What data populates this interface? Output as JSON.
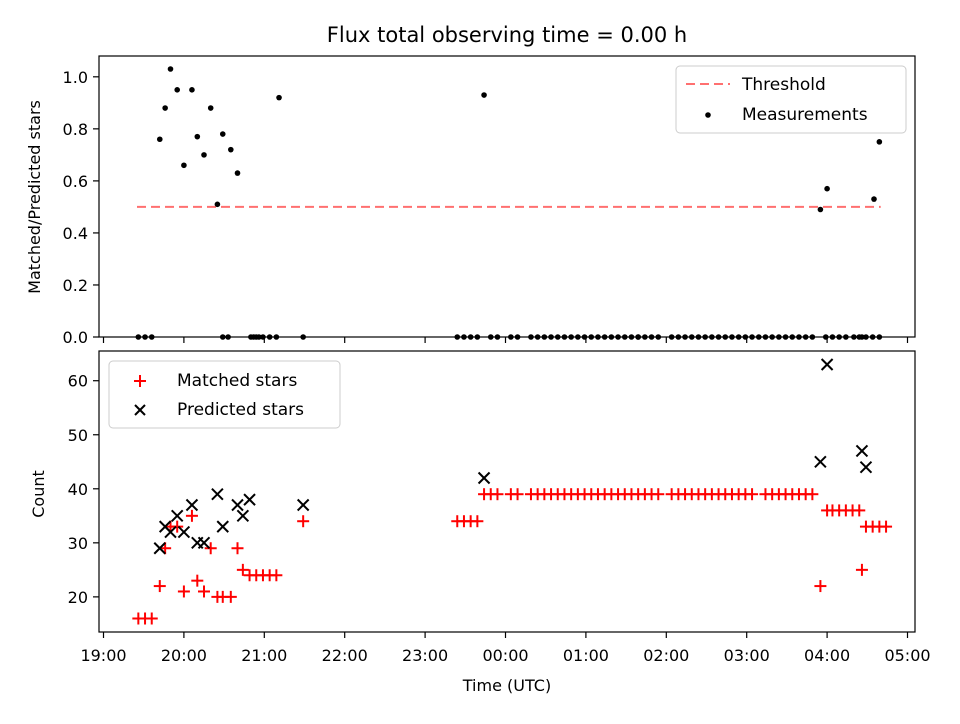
{
  "title": "Flux total observing time = 0.00 h",
  "chart_data": [
    {
      "type": "scatter",
      "panel": "top",
      "ylabel": "Matched/Predicted stars",
      "xlabel": "",
      "xlim": [
        "19:00",
        "05:00"
      ],
      "ylim": [
        0,
        1.08
      ],
      "yticks": [
        "0.0",
        "0.2",
        "0.4",
        "0.6",
        "0.8",
        "1.0"
      ],
      "grid": false,
      "legend_position": "upper right",
      "legend": [
        {
          "label": "Threshold",
          "style": "dashed-line",
          "color": "#ff7070"
        },
        {
          "label": "Measurements",
          "style": "dot",
          "color": "#000000"
        }
      ],
      "threshold": {
        "y": 0.5,
        "x_start": "19:25",
        "x_end": "04:40",
        "color": "#ff7070"
      },
      "measurements_x": [
        "19:42",
        "19:46",
        "19:50",
        "19:55",
        "20:00",
        "20:06",
        "20:10",
        "20:15",
        "20:20",
        "20:25",
        "20:29",
        "20:35",
        "20:40",
        "20:50",
        "20:54",
        "20:59",
        "21:11",
        "21:29",
        "23:44",
        "01:39",
        "03:09",
        "03:55",
        "04:00",
        "04:20",
        "04:26",
        "04:35",
        "04:39"
      ],
      "measurements_y": [
        0.76,
        0.88,
        1.03,
        0.95,
        0.66,
        0.95,
        0.77,
        0.7,
        0.88,
        0.51,
        0.78,
        0.72,
        0.63,
        0.0,
        0.0,
        0.0,
        0.92,
        0.0,
        0.93,
        0.0,
        0.0,
        0.49,
        0.57,
        0.0,
        0.0,
        0.53,
        0.75
      ],
      "zero_x": [
        "19:26",
        "19:31",
        "19:36",
        "20:29",
        "20:33",
        "20:52",
        "20:56",
        "21:04",
        "21:09",
        "23:24",
        "23:29",
        "23:34",
        "23:39",
        "23:49",
        "23:54",
        "24:04",
        "24:09",
        "24:19",
        "24:24",
        "24:29",
        "24:34",
        "24:39",
        "24:44",
        "24:49",
        "24:54",
        "24:59",
        "25:04",
        "25:09",
        "25:14",
        "25:19",
        "25:24",
        "25:29",
        "25:34",
        "25:39",
        "25:44",
        "25:49",
        "25:54",
        "26:04",
        "26:09",
        "26:14",
        "26:19",
        "26:24",
        "26:29",
        "26:34",
        "26:39",
        "26:44",
        "26:49",
        "26:54",
        "26:59",
        "27:04",
        "27:14",
        "27:19",
        "27:24",
        "27:29",
        "27:34",
        "27:39",
        "27:44",
        "27:49",
        "27:59",
        "28:04",
        "28:09",
        "28:14",
        "28:24",
        "28:29",
        "28:34",
        "28:39"
      ]
    },
    {
      "type": "scatter",
      "panel": "bottom",
      "ylabel": "Count",
      "xlabel": "Time (UTC)",
      "xlim": [
        "19:00",
        "05:00"
      ],
      "ylim": [
        13.5,
        65.5
      ],
      "yticks": [
        "20",
        "30",
        "40",
        "50",
        "60"
      ],
      "xticks": [
        "19:00",
        "20:00",
        "21:00",
        "22:00",
        "23:00",
        "00:00",
        "01:00",
        "02:00",
        "03:00",
        "04:00",
        "05:00"
      ],
      "grid": false,
      "legend_position": "upper left",
      "series": [
        {
          "name": "Matched stars",
          "marker": "+",
          "color": "#ff0000",
          "x": [
            "19:26",
            "19:31",
            "19:36",
            "19:42",
            "19:46",
            "19:50",
            "19:55",
            "20:00",
            "20:06",
            "20:10",
            "20:15",
            "20:20",
            "20:25",
            "20:29",
            "20:35",
            "20:40",
            "20:44",
            "20:49",
            "20:54",
            "20:59",
            "21:04",
            "21:09",
            "21:29",
            "23:24",
            "23:29",
            "23:34",
            "23:39",
            "23:44",
            "23:49",
            "23:54",
            "24:04",
            "24:09",
            "24:19",
            "24:24",
            "24:29",
            "24:34",
            "24:39",
            "24:44",
            "24:49",
            "24:54",
            "24:59",
            "25:04",
            "25:09",
            "25:14",
            "25:19",
            "25:24",
            "25:29",
            "25:34",
            "25:39",
            "25:44",
            "25:49",
            "25:54",
            "26:04",
            "26:09",
            "26:14",
            "26:19",
            "26:24",
            "26:29",
            "26:34",
            "26:39",
            "26:44",
            "26:49",
            "26:54",
            "26:59",
            "27:04",
            "27:14",
            "27:19",
            "27:24",
            "27:29",
            "27:34",
            "27:39",
            "27:44",
            "27:49",
            "27:55",
            "28:00",
            "28:04",
            "28:09",
            "28:14",
            "28:19",
            "28:24",
            "28:26",
            "28:29",
            "28:34",
            "28:39",
            "28:44"
          ],
          "y": [
            16,
            16,
            16,
            22,
            29,
            33,
            33,
            21,
            35,
            23,
            21,
            29,
            20,
            20,
            20,
            29,
            25,
            24,
            24,
            24,
            24,
            24,
            34,
            34,
            34,
            34,
            34,
            39,
            39,
            39,
            39,
            39,
            39,
            39,
            39,
            39,
            39,
            39,
            39,
            39,
            39,
            39,
            39,
            39,
            39,
            39,
            39,
            39,
            39,
            39,
            39,
            39,
            39,
            39,
            39,
            39,
            39,
            39,
            39,
            39,
            39,
            39,
            39,
            39,
            39,
            39,
            39,
            39,
            39,
            39,
            39,
            39,
            39,
            22,
            36,
            36,
            36,
            36,
            36,
            36,
            25,
            33,
            33,
            33,
            33
          ]
        },
        {
          "name": "Predicted stars",
          "marker": "x",
          "color": "#000000",
          "x": [
            "19:42",
            "19:46",
            "19:50",
            "19:55",
            "20:00",
            "20:06",
            "20:10",
            "20:15",
            "20:25",
            "20:29",
            "20:40",
            "20:44",
            "20:49",
            "21:29",
            "23:44",
            "27:55",
            "28:00",
            "28:26",
            "28:29"
          ],
          "y": [
            29,
            33,
            32,
            35,
            32,
            37,
            30,
            30,
            39,
            33,
            37,
            35,
            38,
            37,
            42,
            45,
            63,
            47,
            44
          ]
        }
      ]
    }
  ]
}
